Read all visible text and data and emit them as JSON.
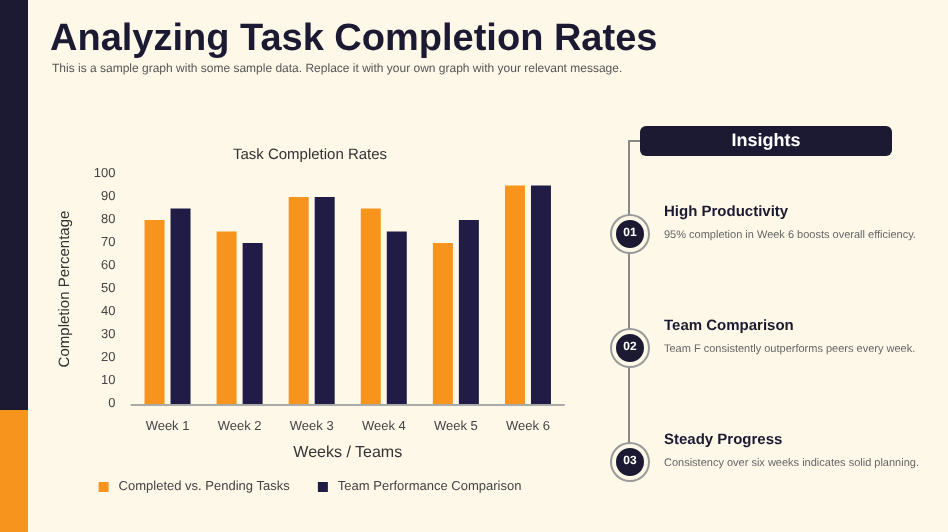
{
  "chart_data": [
    {
      "type": "other",
      "title": "Analyzing Task Completion Rates",
      "subtitle": "This is a sample graph with some sample data. Replace it with your own graph with your relevant message."
    },
    {
      "type": "bar",
      "title": "Task Completion Rates",
      "xlabel": "Weeks / Teams",
      "ylabel": "Completion Percentage",
      "categories": [
        "Week 1",
        "Week 2",
        "Week 3",
        "Week 4",
        "Week 5",
        "Week 6"
      ],
      "series": [
        {
          "name": "Completed vs. Pending Tasks",
          "color": "#f7941d",
          "values": [
            80,
            75,
            90,
            85,
            70,
            95
          ]
        },
        {
          "name": "Team Performance Comparison",
          "color": "#211c45",
          "values": [
            85,
            70,
            90,
            75,
            80,
            95
          ]
        }
      ],
      "ylim": [
        0,
        100
      ],
      "yticks": [
        0,
        10,
        20,
        30,
        40,
        50,
        60,
        70,
        80,
        90,
        100
      ],
      "grid": false,
      "legend": "bottom"
    },
    {
      "type": "other",
      "title": "Insights",
      "annotations": [
        "01",
        "High Productivity",
        "95% completion in Week 6 boosts overall efficiency.",
        "02",
        "Team Comparison",
        "Team F consistently outperforms peers every week.",
        "03",
        "Steady Progress",
        "Consistency over six weeks indicates solid planning."
      ]
    }
  ]
}
